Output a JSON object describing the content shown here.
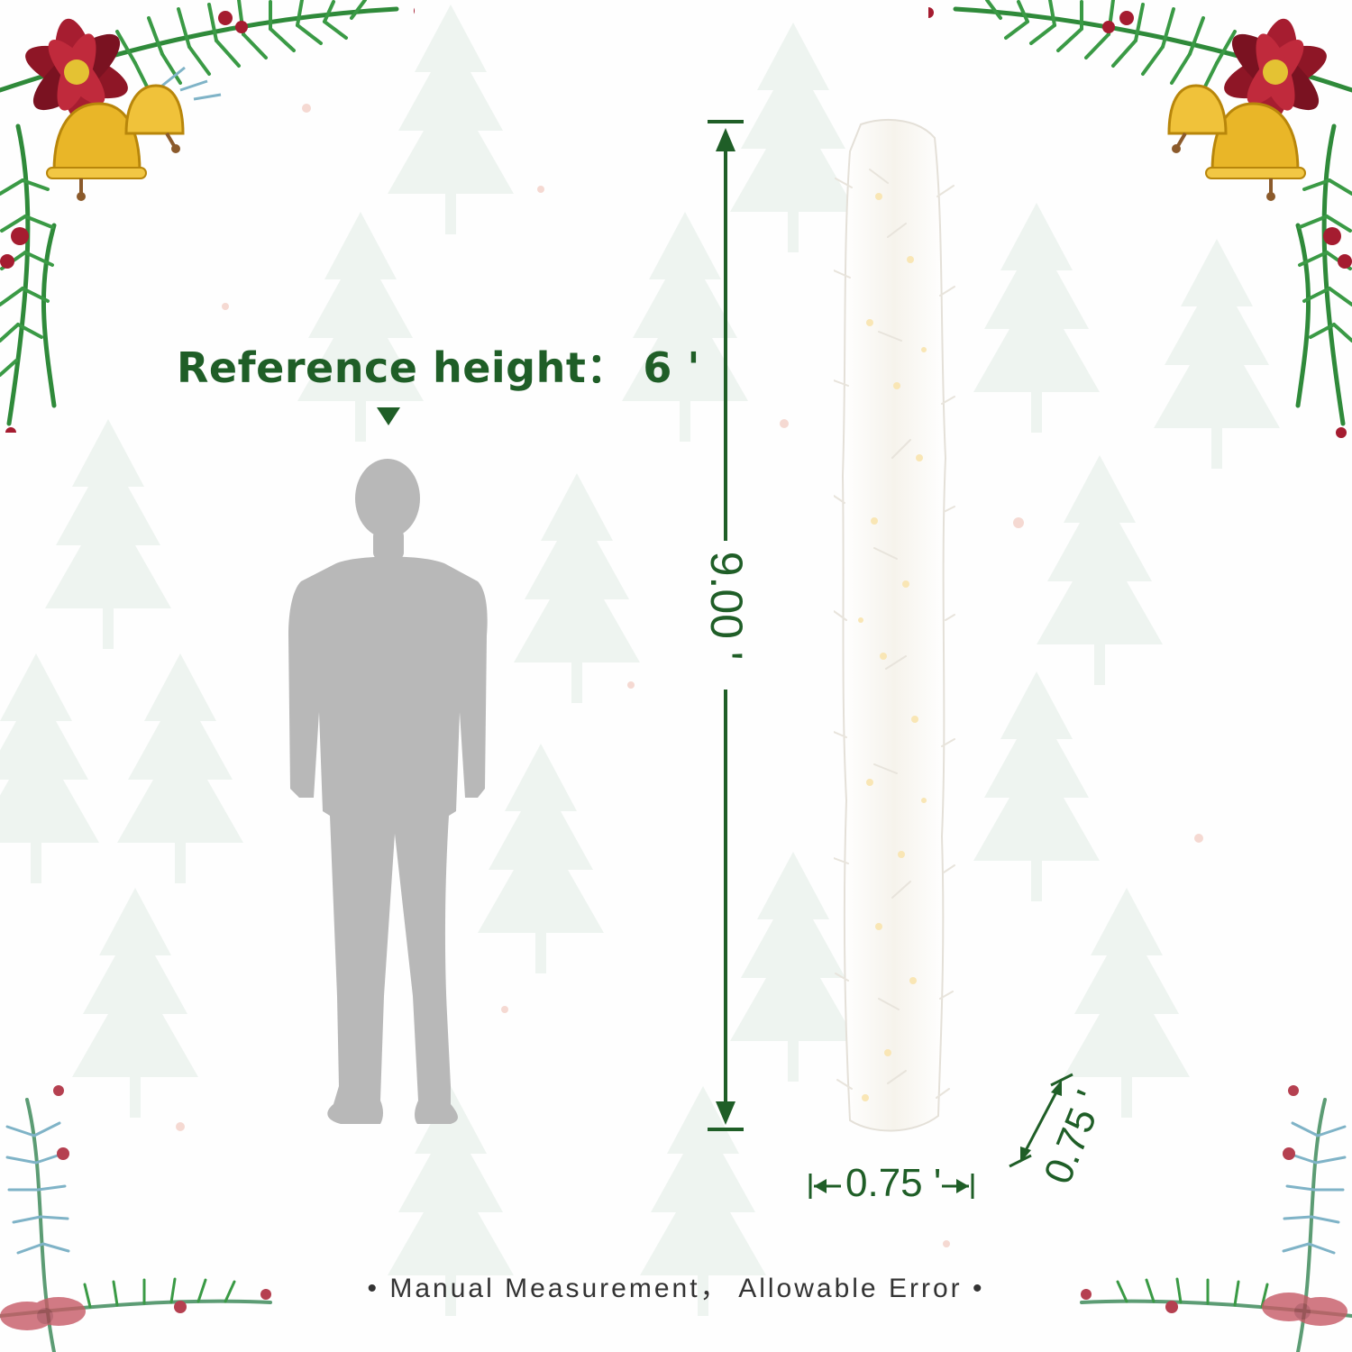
{
  "reference": {
    "label": "Reference height： 6 '"
  },
  "dimensions": {
    "height_label": "9.00 '",
    "width_label": "0.75 '",
    "depth_label": "0.75 '"
  },
  "footnote": "• Manual Measurement， Allowable Error •",
  "colors": {
    "accent_green": "#1f5e27",
    "silhouette": "#b8b8b8",
    "background": "#fefefe"
  },
  "icons": {
    "corner_decor": "poinsettia-bell-pine-icon",
    "person": "person-silhouette-icon",
    "product": "white-garland-icon"
  }
}
